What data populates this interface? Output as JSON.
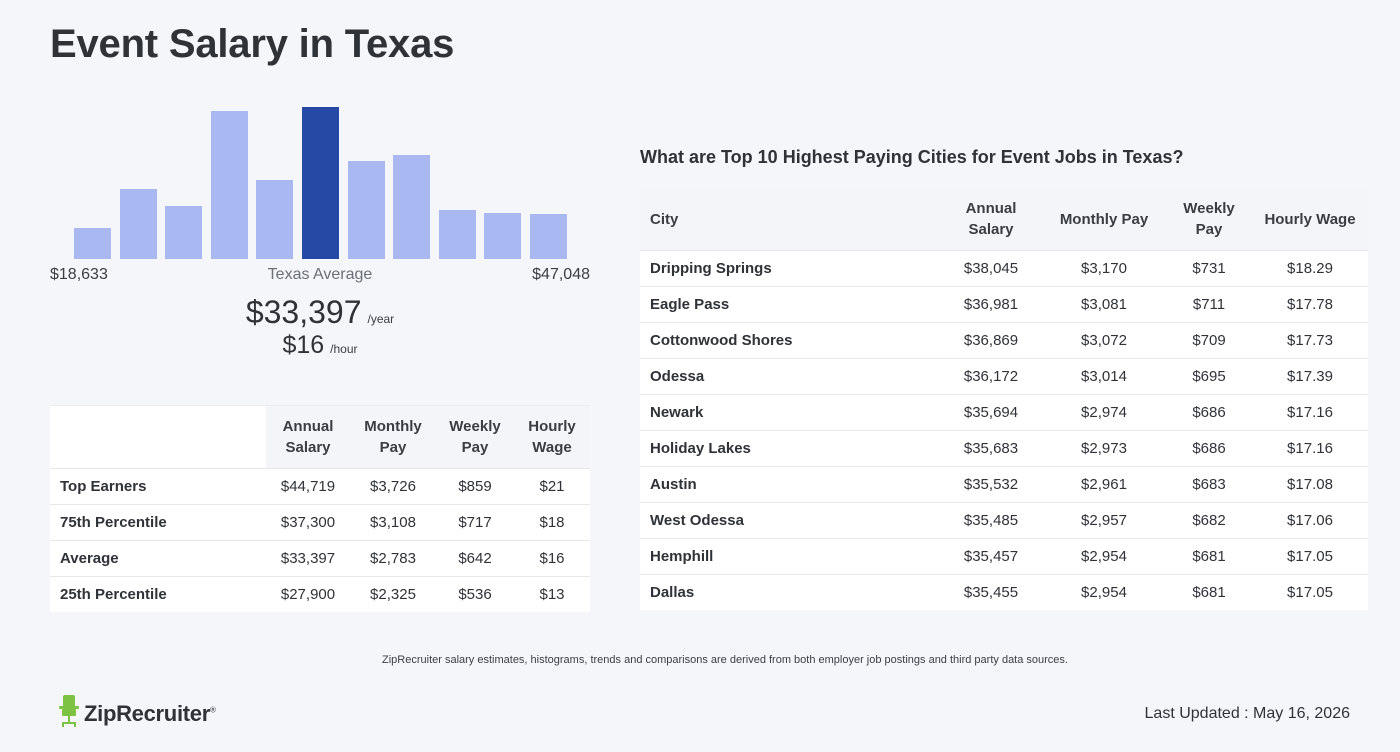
{
  "page": {
    "title": "Event Salary in Texas"
  },
  "histogram": {
    "min_label": "$18,633",
    "max_label": "$47,048",
    "mid_label": "Texas Average",
    "bar_values": [
      31,
      70,
      53,
      148,
      79,
      152,
      98,
      104,
      49,
      46,
      45
    ],
    "active_index": 5,
    "colors": {
      "bar": "#a9b8f0",
      "active": "#2649a5"
    }
  },
  "average": {
    "yearly": "$33,397",
    "yearly_unit": "/year",
    "hourly": "$16",
    "hourly_unit": "/hour"
  },
  "percentile_table": {
    "headers": [
      "",
      "Annual Salary",
      "Monthly Pay",
      "Weekly Pay",
      "Hourly Wage"
    ],
    "rows": [
      {
        "label": "Top Earners",
        "annual": "$44,719",
        "monthly": "$3,726",
        "weekly": "$859",
        "hourly": "$21"
      },
      {
        "label": "75th Percentile",
        "annual": "$37,300",
        "monthly": "$3,108",
        "weekly": "$717",
        "hourly": "$18"
      },
      {
        "label": "Average",
        "annual": "$33,397",
        "monthly": "$2,783",
        "weekly": "$642",
        "hourly": "$16"
      },
      {
        "label": "25th Percentile",
        "annual": "$27,900",
        "monthly": "$2,325",
        "weekly": "$536",
        "hourly": "$13"
      }
    ]
  },
  "cities_table": {
    "title": "What are Top 10 Highest Paying Cities for Event Jobs in Texas?",
    "headers": [
      "City",
      "Annual Salary",
      "Monthly Pay",
      "Weekly Pay",
      "Hourly Wage"
    ],
    "rows": [
      {
        "city": "Dripping Springs",
        "annual": "$38,045",
        "monthly": "$3,170",
        "weekly": "$731",
        "hourly": "$18.29"
      },
      {
        "city": "Eagle Pass",
        "annual": "$36,981",
        "monthly": "$3,081",
        "weekly": "$711",
        "hourly": "$17.78"
      },
      {
        "city": "Cottonwood Shores",
        "annual": "$36,869",
        "monthly": "$3,072",
        "weekly": "$709",
        "hourly": "$17.73"
      },
      {
        "city": "Odessa",
        "annual": "$36,172",
        "monthly": "$3,014",
        "weekly": "$695",
        "hourly": "$17.39"
      },
      {
        "city": "Newark",
        "annual": "$35,694",
        "monthly": "$2,974",
        "weekly": "$686",
        "hourly": "$17.16"
      },
      {
        "city": "Holiday Lakes",
        "annual": "$35,683",
        "monthly": "$2,973",
        "weekly": "$686",
        "hourly": "$17.16"
      },
      {
        "city": "Austin",
        "annual": "$35,532",
        "monthly": "$2,961",
        "weekly": "$683",
        "hourly": "$17.08"
      },
      {
        "city": "West Odessa",
        "annual": "$35,485",
        "monthly": "$2,957",
        "weekly": "$682",
        "hourly": "$17.06"
      },
      {
        "city": "Hemphill",
        "annual": "$35,457",
        "monthly": "$2,954",
        "weekly": "$681",
        "hourly": "$17.05"
      },
      {
        "city": "Dallas",
        "annual": "$35,455",
        "monthly": "$2,954",
        "weekly": "$681",
        "hourly": "$17.05"
      }
    ]
  },
  "footer": {
    "disclaimer": "ZipRecruiter salary estimates, histograms, trends and comparisons are derived from both employer job postings and third party data sources.",
    "brand": "ZipRecruiter",
    "brand_mark": "®",
    "logo_icon": "chair-mascot-icon",
    "logo_color": "#7dc242",
    "updated": "Last Updated : May 16, 2026"
  }
}
